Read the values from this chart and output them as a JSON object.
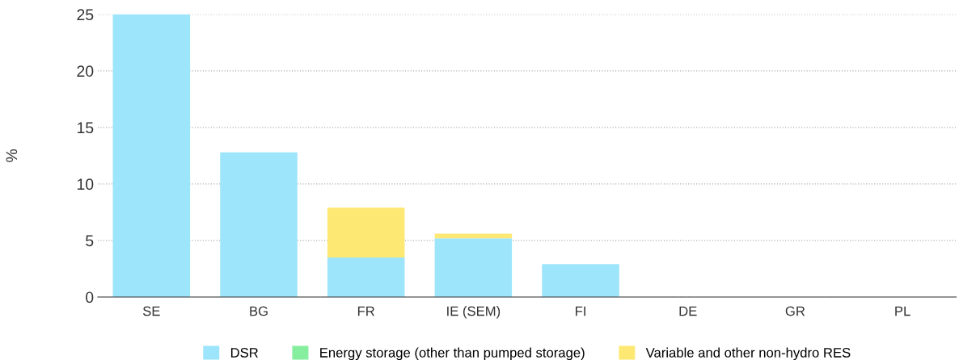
{
  "chart_data": {
    "type": "bar",
    "stacked": true,
    "ylabel": "%",
    "categories": [
      "SE",
      "BG",
      "FR",
      "IE (SEM)",
      "FI",
      "DE",
      "GR",
      "PL"
    ],
    "series": [
      {
        "name": "DSR",
        "color": "#9de5fb",
        "values": [
          25,
          12.8,
          3.5,
          5.2,
          2.9,
          0,
          0,
          0
        ]
      },
      {
        "name": "Energy storage (other than pumped storage)",
        "color": "#86ee9f",
        "values": [
          0,
          0,
          0,
          0,
          0,
          0,
          0,
          0
        ]
      },
      {
        "name": "Variable and other non-hydro RES",
        "color": "#fde874",
        "values": [
          0,
          0,
          4.4,
          0.4,
          0,
          0,
          0,
          0
        ]
      }
    ],
    "ylim": [
      0,
      25
    ],
    "yticks": [
      0,
      5,
      10,
      15,
      20,
      25
    ],
    "grid": "y",
    "legend": "bottom"
  }
}
